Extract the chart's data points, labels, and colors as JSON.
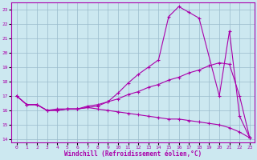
{
  "xlabel": "Windchill (Refroidissement éolien,°C)",
  "xlim": [
    -0.5,
    23.5
  ],
  "ylim": [
    13.8,
    23.5
  ],
  "xticks": [
    0,
    1,
    2,
    3,
    4,
    5,
    6,
    7,
    8,
    9,
    10,
    11,
    12,
    13,
    14,
    15,
    16,
    17,
    18,
    19,
    20,
    21,
    22,
    23
  ],
  "yticks": [
    14,
    15,
    16,
    17,
    18,
    19,
    20,
    21,
    22,
    23
  ],
  "bg_color": "#cce8f0",
  "line_color": "#aa00aa",
  "grid_color": "#99bbcc",
  "line1_x": [
    0,
    1,
    2,
    3,
    4,
    5,
    6,
    7,
    8,
    9,
    10,
    11,
    12,
    13,
    14,
    15,
    16,
    17,
    18,
    20,
    21,
    22,
    23
  ],
  "line1_y": [
    17.0,
    16.4,
    16.4,
    16.0,
    16.0,
    16.1,
    16.1,
    16.2,
    16.3,
    16.6,
    17.2,
    17.9,
    18.5,
    19.0,
    19.5,
    22.5,
    23.2,
    22.8,
    22.4,
    17.0,
    21.5,
    15.6,
    14.1
  ],
  "line2_x": [
    0,
    1,
    2,
    3,
    4,
    5,
    6,
    7,
    8,
    9,
    10,
    11,
    12,
    13,
    14,
    15,
    16,
    17,
    18,
    19,
    20,
    21,
    22,
    23
  ],
  "line2_y": [
    17.0,
    16.4,
    16.4,
    16.0,
    16.0,
    16.1,
    16.1,
    16.3,
    16.4,
    16.6,
    16.8,
    17.1,
    17.3,
    17.6,
    17.8,
    18.1,
    18.3,
    18.6,
    18.8,
    19.1,
    19.3,
    19.2,
    17.0,
    14.1
  ],
  "line3_x": [
    0,
    1,
    2,
    3,
    4,
    5,
    6,
    7,
    8,
    9,
    10,
    11,
    12,
    13,
    14,
    15,
    16,
    17,
    18,
    19,
    20,
    21,
    22,
    23
  ],
  "line3_y": [
    17.0,
    16.4,
    16.4,
    16.0,
    16.1,
    16.1,
    16.1,
    16.2,
    16.1,
    16.0,
    15.9,
    15.8,
    15.7,
    15.6,
    15.5,
    15.4,
    15.4,
    15.3,
    15.2,
    15.1,
    15.0,
    14.8,
    14.5,
    14.1
  ]
}
